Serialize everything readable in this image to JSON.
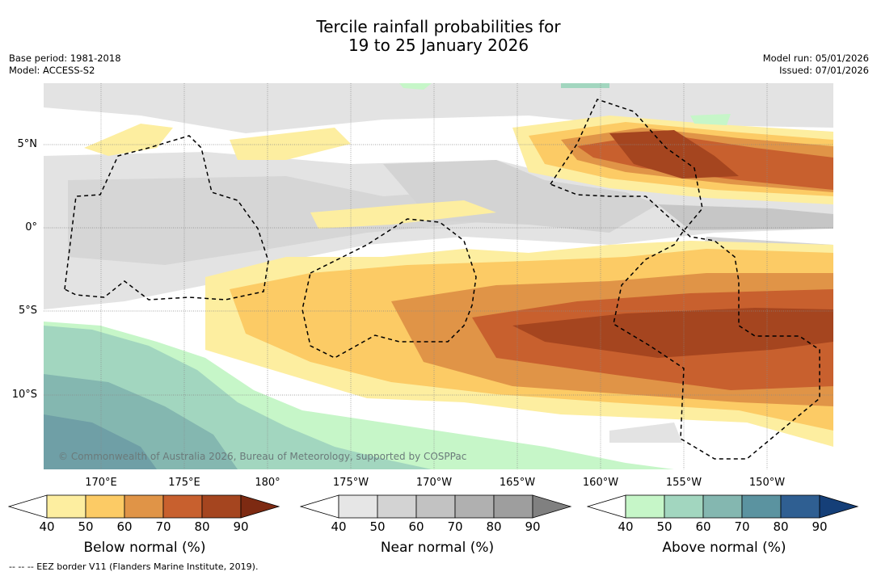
{
  "title": {
    "line1": "Tercile rainfall probabilities for",
    "line2": "19 to 25 January 2026"
  },
  "meta_left": {
    "base_period": "Base period: 1981-2018",
    "model": "Model: ACCESS-S2"
  },
  "meta_right": {
    "model_run": "Model run: 05/01/2026",
    "issued": "Issued: 07/01/2026"
  },
  "map": {
    "lat_labels": [
      "5°N",
      "0°",
      "5°S",
      "10°S"
    ],
    "lon_labels": [
      "170°E",
      "175°E",
      "180°",
      "175°W",
      "170°W",
      "165°W",
      "160°W",
      "155°W",
      "150°W"
    ],
    "copyright": "© Commonwealth of Australia 2026, Bureau of Meteorology, supported by COSPPac"
  },
  "colorbars": [
    {
      "label": "Below normal (%)",
      "ticks": [
        "40",
        "50",
        "60",
        "70",
        "80",
        "90"
      ],
      "colors": [
        "#ffffff",
        "#fdeea0",
        "#fccb65",
        "#e09447",
        "#c8602e",
        "#a5451f",
        "#7d2a12"
      ]
    },
    {
      "label": "Near normal (%)",
      "ticks": [
        "40",
        "50",
        "60",
        "70",
        "80",
        "90"
      ],
      "colors": [
        "#ffffff",
        "#e6e6e6",
        "#d3d3d3",
        "#c2c2c2",
        "#b0b0b0",
        "#9e9e9e",
        "#808080"
      ]
    },
    {
      "label": "Above normal (%)",
      "ticks": [
        "40",
        "50",
        "60",
        "70",
        "80",
        "90"
      ],
      "colors": [
        "#ffffff",
        "#c6f6c8",
        "#a2d6bf",
        "#84b7b0",
        "#5b93a0",
        "#2f5f92",
        "#153f78"
      ]
    }
  ],
  "footnote": "--  --  -- EEZ border V11 (Flanders Marine Institute, 2019)."
}
